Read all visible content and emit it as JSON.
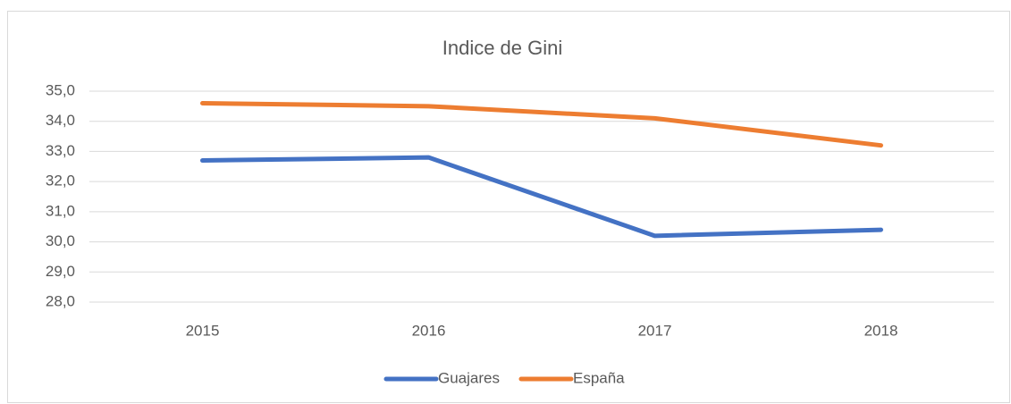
{
  "chart_data": {
    "type": "line",
    "title": "Indice de Gini",
    "categories": [
      "2015",
      "2016",
      "2017",
      "2018"
    ],
    "series": [
      {
        "name": "Guajares",
        "color": "#4472c4",
        "values": [
          32.7,
          32.8,
          30.2,
          30.4
        ]
      },
      {
        "name": "España",
        "color": "#ed7d31",
        "values": [
          34.6,
          34.5,
          34.1,
          33.2
        ]
      }
    ],
    "ylim": [
      28,
      35
    ],
    "yticks": [
      {
        "value": 28,
        "label": "28,0"
      },
      {
        "value": 29,
        "label": "29,0"
      },
      {
        "value": 30,
        "label": "30,0"
      },
      {
        "value": 31,
        "label": "31,0"
      },
      {
        "value": 32,
        "label": "32,0"
      },
      {
        "value": 33,
        "label": "33,0"
      },
      {
        "value": 34,
        "label": "34,0"
      },
      {
        "value": 35,
        "label": "35,0"
      }
    ],
    "grid": true,
    "legend": "bottom"
  }
}
